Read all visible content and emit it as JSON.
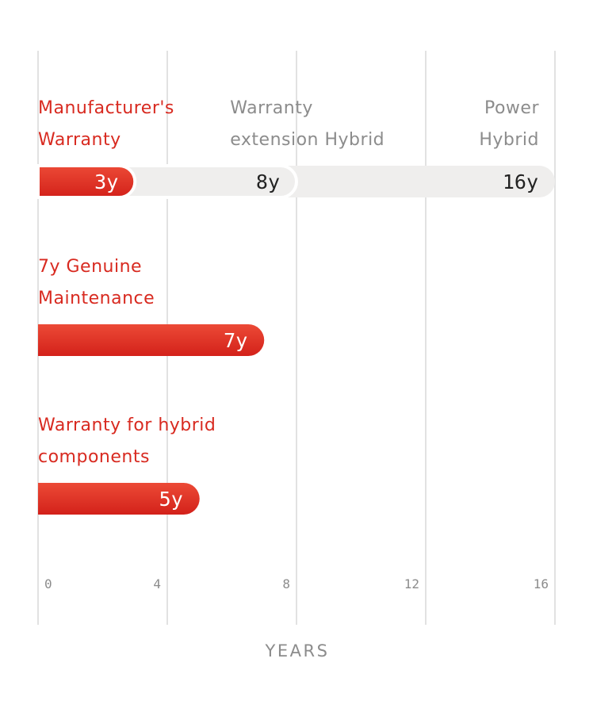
{
  "colors": {
    "accent": "#d82a20",
    "accent_light": "#ec4a36",
    "track": "#efeeed",
    "muted_text": "#8c8c8c",
    "dark_text": "#222222",
    "gridline": "#e2e2e2"
  },
  "chart_data": {
    "type": "bar",
    "orientation": "horizontal",
    "xlabel": "YEARS",
    "xlim": [
      0,
      16
    ],
    "x_ticks": [
      0,
      4,
      8,
      12,
      16
    ],
    "grid": true,
    "rows": [
      {
        "segments": [
          {
            "label_lines": [
              "Manufacturer's",
              "Warranty"
            ],
            "value": 3,
            "value_label": "3y",
            "style": "primary"
          },
          {
            "label_lines": [
              "Warranty",
              "extension Hybrid"
            ],
            "value": 8,
            "value_label": "8y",
            "style": "secondary"
          },
          {
            "label_lines": [
              "Power",
              "Hybrid"
            ],
            "value": 16,
            "value_label": "16y",
            "style": "secondary"
          }
        ]
      },
      {
        "segments": [
          {
            "label_lines": [
              "7y Genuine",
              "Maintenance"
            ],
            "value": 7,
            "value_label": "7y",
            "style": "primary"
          }
        ]
      },
      {
        "segments": [
          {
            "label_lines": [
              "Warranty for hybrid",
              "components"
            ],
            "value": 5,
            "value_label": "5y",
            "style": "primary"
          }
        ]
      }
    ]
  }
}
